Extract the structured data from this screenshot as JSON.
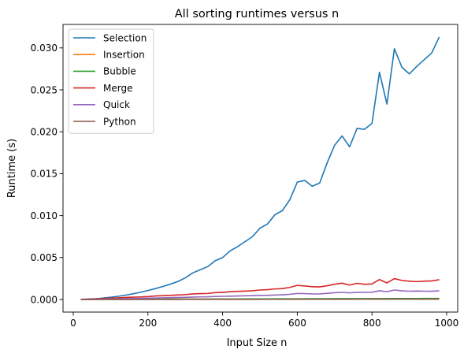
{
  "chart_data": {
    "type": "line",
    "title": "All sorting runtimes versus n",
    "xlabel": "Input Size n",
    "ylabel": "Runtime (s)",
    "xlim": [
      0,
      1000
    ],
    "ylim": [
      -0.0015,
      0.0328
    ],
    "xticks": [
      0,
      200,
      400,
      600,
      800,
      1000
    ],
    "xtick_labels": [
      "0",
      "200",
      "400",
      "600",
      "800",
      "1000"
    ],
    "yticks": [
      0.0,
      0.005,
      0.01,
      0.015,
      0.02,
      0.025,
      0.03
    ],
    "ytick_labels": [
      "0.000",
      "0.005",
      "0.010",
      "0.015",
      "0.020",
      "0.025",
      "0.030"
    ],
    "grid": false,
    "legend_position": "upper-left",
    "x": [
      20,
      40,
      60,
      80,
      100,
      120,
      140,
      160,
      180,
      200,
      220,
      240,
      260,
      280,
      300,
      320,
      340,
      360,
      380,
      400,
      420,
      440,
      460,
      480,
      500,
      520,
      540,
      560,
      580,
      600,
      620,
      640,
      660,
      680,
      700,
      720,
      740,
      760,
      780,
      800,
      820,
      840,
      860,
      880,
      900,
      920,
      940,
      960,
      980
    ],
    "series": [
      {
        "name": "Selection",
        "color": "#1f77b4",
        "values": [
          1e-05,
          4e-05,
          9e-05,
          0.00017,
          0.00027,
          0.00038,
          0.00052,
          0.00068,
          0.00086,
          0.00107,
          0.0013,
          0.00155,
          0.00183,
          0.00214,
          0.00258,
          0.00317,
          0.00355,
          0.00392,
          0.00462,
          0.005,
          0.0058,
          0.0063,
          0.0069,
          0.0075,
          0.0085,
          0.009,
          0.0101,
          0.0106,
          0.0119,
          0.014,
          0.0142,
          0.0135,
          0.0139,
          0.0163,
          0.0184,
          0.0195,
          0.0182,
          0.0204,
          0.0203,
          0.021,
          0.0271,
          0.0233,
          0.0299,
          0.0277,
          0.0269,
          0.0278,
          0.0286,
          0.0294,
          0.0313
        ]
      },
      {
        "name": "Insertion",
        "color": "#ff7f0e",
        "values": [
          1e-05,
          1e-05,
          1e-05,
          2e-05,
          2e-05,
          2e-05,
          2e-05,
          3e-05,
          3e-05,
          3e-05,
          3e-05,
          3e-05,
          4e-05,
          4e-05,
          4e-05,
          4e-05,
          4e-05,
          5e-05,
          5e-05,
          5e-05,
          5e-05,
          5e-05,
          6e-05,
          6e-05,
          6e-05,
          6e-05,
          6e-05,
          6e-05,
          7e-05,
          7e-05,
          7e-05,
          7e-05,
          7e-05,
          7e-05,
          8e-05,
          8e-05,
          8e-05,
          8e-05,
          8e-05,
          9e-05,
          9e-05,
          9e-05,
          9e-05,
          9e-05,
          9e-05,
          0.0001,
          0.0001,
          0.0001,
          0.0001
        ]
      },
      {
        "name": "Bubble",
        "color": "#2ca02c",
        "values": [
          1e-05,
          1e-05,
          1e-05,
          2e-05,
          2e-05,
          2e-05,
          3e-05,
          3e-05,
          3e-05,
          3e-05,
          4e-05,
          4e-05,
          4e-05,
          4e-05,
          5e-05,
          5e-05,
          5e-05,
          5e-05,
          6e-05,
          6e-05,
          6e-05,
          6e-05,
          7e-05,
          7e-05,
          7e-05,
          7e-05,
          8e-05,
          8e-05,
          8e-05,
          8e-05,
          9e-05,
          9e-05,
          9e-05,
          9e-05,
          0.0001,
          0.0001,
          0.0001,
          0.0001,
          0.00011,
          0.00011,
          0.00011,
          0.00011,
          0.00012,
          0.00012,
          0.00012,
          0.00012,
          0.00013,
          0.00013,
          0.00013
        ]
      },
      {
        "name": "Merge",
        "color": "#d62728",
        "values": [
          2e-05,
          5e-05,
          8e-05,
          0.00012,
          0.00016,
          0.0002,
          0.00024,
          0.00028,
          0.00031,
          0.00035,
          0.00042,
          0.00046,
          0.0005,
          0.00054,
          0.00058,
          0.00067,
          0.0007,
          0.00072,
          0.00082,
          0.00084,
          0.00094,
          0.00097,
          0.001,
          0.00104,
          0.00113,
          0.00117,
          0.00126,
          0.0013,
          0.00145,
          0.00168,
          0.00162,
          0.00152,
          0.0015,
          0.00164,
          0.00182,
          0.00195,
          0.00172,
          0.00193,
          0.00182,
          0.00185,
          0.00238,
          0.00198,
          0.00249,
          0.00227,
          0.00218,
          0.00213,
          0.00218,
          0.00222,
          0.00236
        ]
      },
      {
        "name": "Quick",
        "color": "#9467bd",
        "values": [
          1e-05,
          2e-05,
          3e-05,
          5e-05,
          7e-05,
          9e-05,
          0.0001,
          0.00012,
          0.00014,
          0.00016,
          0.00018,
          0.0002,
          0.00022,
          0.00024,
          0.00026,
          0.00029,
          0.00031,
          0.00033,
          0.00036,
          0.00038,
          0.0004,
          0.00042,
          0.00044,
          0.00046,
          0.00048,
          0.0005,
          0.00053,
          0.00056,
          0.00062,
          0.00072,
          0.0007,
          0.00066,
          0.00067,
          0.00074,
          0.00081,
          0.00085,
          0.00079,
          0.00086,
          0.00085,
          0.00087,
          0.00104,
          0.00093,
          0.00113,
          0.00103,
          0.00099,
          0.00101,
          0.00099,
          0.00098,
          0.00103
        ]
      },
      {
        "name": "Python",
        "color": "#8c564b",
        "values": [
          2e-06,
          2e-06,
          3e-06,
          4e-06,
          5e-06,
          6e-06,
          7e-06,
          8e-06,
          9e-06,
          1e-05,
          1.1e-05,
          1.2e-05,
          1.3e-05,
          1.4e-05,
          1.5e-05,
          1.6e-05,
          1.7e-05,
          1.8e-05,
          1.9e-05,
          2e-05,
          2.1e-05,
          2.2e-05,
          2.3e-05,
          2.4e-05,
          2.5e-05,
          2.6e-05,
          2.7e-05,
          2.8e-05,
          2.9e-05,
          3e-05,
          3.1e-05,
          3.2e-05,
          3.3e-05,
          3.4e-05,
          3.5e-05,
          3.6e-05,
          3.7e-05,
          3.8e-05,
          3.9e-05,
          4e-05,
          4.1e-05,
          4.2e-05,
          4.3e-05,
          4.4e-05,
          4.5e-05,
          4.6e-05,
          4.7e-05,
          4.8e-05,
          4.9e-05
        ]
      }
    ]
  }
}
